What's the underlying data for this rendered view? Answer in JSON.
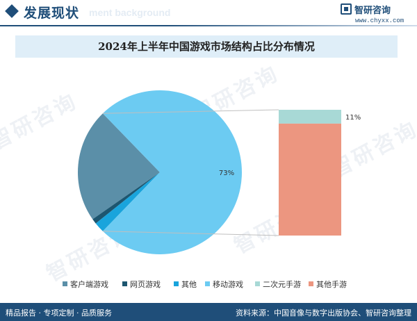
{
  "header": {
    "section_title": "发展现状",
    "section_subtitle": "ment background",
    "brand_name": "智研咨询",
    "brand_url": "www.chyxx.com"
  },
  "watermark_text": "智研咨询",
  "chart_data": {
    "type": "pie",
    "title": "2024年上半年中国游戏市场结构占比分布情况",
    "series": [
      {
        "name": "客户端游戏",
        "value": 22,
        "color": "#5b8fa8"
      },
      {
        "name": "网页游戏",
        "value": 1,
        "color": "#1d5670"
      },
      {
        "name": "其他",
        "value": 2,
        "color": "#19a4dc"
      },
      {
        "name": "移动游戏",
        "value": 73,
        "color": "#6ccbf2",
        "label": "73%"
      },
      {
        "name": "二次元手游",
        "value": 11,
        "color": "#a8d9d6",
        "label": "11%",
        "breakdown_of": "移动游戏"
      },
      {
        "name": "其他手游",
        "value": 89,
        "color": "#ec9680",
        "breakdown_of": "移动游戏"
      }
    ],
    "legend_placement": "bottom"
  },
  "footer": {
    "left": "精品报告 · 专项定制 · 品质服务",
    "right": "资料来源：中国音像与数字出版协会、智研咨询整理"
  }
}
